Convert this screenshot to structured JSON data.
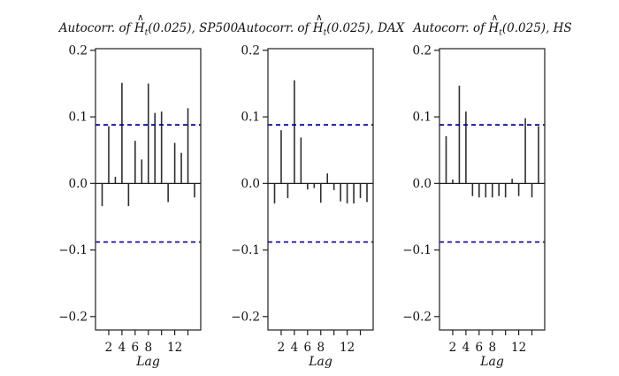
{
  "figure": {
    "background": "#ffffff"
  },
  "colors": {
    "stem": "#2e2e2e",
    "conf_line": "#0000a6",
    "axis": "#1f1f1f",
    "text": "#111111"
  },
  "chart_data": [
    {
      "type": "stem",
      "title": {
        "prefix": "Autocorr. of ",
        "var": "H",
        "hat": "∧",
        "sub": "t",
        "suffix": "(0.025)",
        "series": ", SP500",
        "text": "Autocorr. of Ĥt(0.025), SP500"
      },
      "xlabel": "Lag",
      "lags": [
        1,
        2,
        3,
        4,
        5,
        6,
        7,
        8,
        9,
        10,
        11,
        12,
        13,
        14,
        15
      ],
      "values": [
        -0.034,
        0.086,
        0.01,
        0.151,
        -0.034,
        0.064,
        0.036,
        0.15,
        0.106,
        0.108,
        -0.028,
        0.061,
        0.046,
        0.113,
        -0.021
      ],
      "conf_bounds": [
        -0.088,
        0.088
      ],
      "ylim": [
        -0.2202,
        0.2025
      ],
      "yticks": [
        0.2,
        0.1,
        0.0,
        -0.1,
        -0.2
      ],
      "ytick_labels": [
        "0.2",
        "0.1",
        "0.0",
        "−0.1",
        "−0.2"
      ],
      "xticks": [
        2,
        4,
        6,
        8,
        10,
        12,
        14
      ],
      "xtick_labels": [
        "2",
        "4",
        "6",
        "8",
        "",
        "12",
        ""
      ],
      "grid": false,
      "legend": null
    },
    {
      "type": "stem",
      "title": {
        "prefix": "Autocorr. of ",
        "var": "H",
        "hat": "∧",
        "sub": "t",
        "suffix": "(0.025)",
        "series": ", DAX",
        "text": "Autocorr. of Ĥt(0.025), DAX"
      },
      "xlabel": "Lag",
      "lags": [
        1,
        2,
        3,
        4,
        5,
        6,
        7,
        8,
        9,
        10,
        11,
        12,
        13,
        14,
        15
      ],
      "values": [
        -0.03,
        0.08,
        -0.022,
        0.155,
        0.069,
        -0.009,
        -0.007,
        -0.029,
        0.015,
        -0.01,
        -0.027,
        -0.03,
        -0.03,
        -0.022,
        -0.028
      ],
      "conf_bounds": [
        -0.088,
        0.088
      ],
      "ylim": [
        -0.2202,
        0.2025
      ],
      "yticks": [
        0.2,
        0.1,
        0.0,
        -0.1,
        -0.2
      ],
      "ytick_labels": [
        "0.2",
        "0.1",
        "0.0",
        "−0.1",
        "−0.2"
      ],
      "xticks": [
        2,
        4,
        6,
        8,
        10,
        12,
        14
      ],
      "xtick_labels": [
        "2",
        "4",
        "6",
        "8",
        "",
        "12",
        ""
      ],
      "grid": false,
      "legend": null
    },
    {
      "type": "stem",
      "title": {
        "prefix": "Autocorr. of ",
        "var": "H",
        "hat": "∧",
        "sub": "t",
        "suffix": "(0.025)",
        "series": ", HS",
        "text": "Autocorr. of Ĥt(0.025), HS"
      },
      "xlabel": "Lag",
      "lags": [
        1,
        2,
        3,
        4,
        5,
        6,
        7,
        8,
        9,
        10,
        11,
        12,
        13,
        14,
        15
      ],
      "values": [
        0.071,
        0.006,
        0.147,
        0.108,
        -0.019,
        -0.021,
        -0.021,
        -0.021,
        -0.019,
        -0.021,
        0.007,
        -0.019,
        0.098,
        -0.021,
        0.086
      ],
      "conf_bounds": [
        -0.088,
        0.088
      ],
      "ylim": [
        -0.2202,
        0.2025
      ],
      "yticks": [
        0.2,
        0.1,
        0.0,
        -0.1,
        -0.2
      ],
      "ytick_labels": [
        "0.2",
        "0.1",
        "0.0",
        "−0.1",
        "−0.2"
      ],
      "xticks": [
        2,
        4,
        6,
        8,
        10,
        12,
        14
      ],
      "xtick_labels": [
        "2",
        "4",
        "6",
        "8",
        "",
        "12",
        ""
      ],
      "grid": false,
      "legend": null
    }
  ]
}
